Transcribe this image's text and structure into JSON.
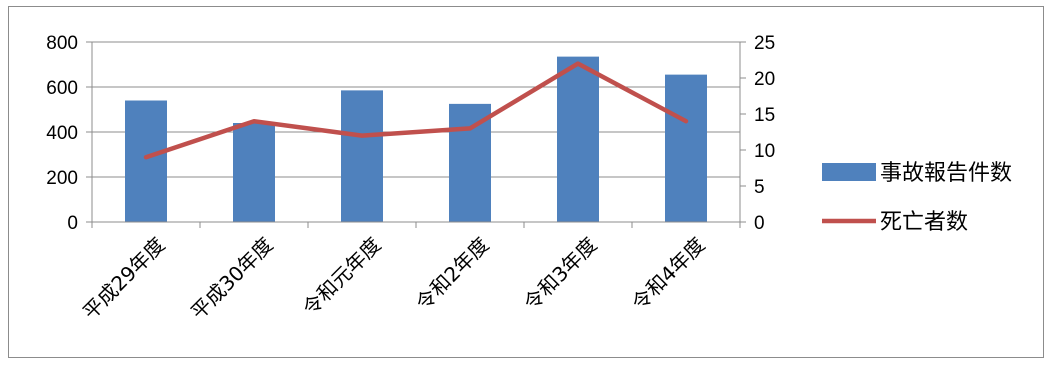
{
  "chart_data": {
    "type": "bar+line",
    "categories": [
      "平成29年度",
      "平成30年度",
      "令和元年度",
      "令和2年度",
      "令和3年度",
      "令和4年度"
    ],
    "series": [
      {
        "name": "事故報告件数",
        "type": "bar",
        "axis": "left",
        "color": "#4f81bd",
        "values": [
          540,
          440,
          585,
          525,
          735,
          655
        ]
      },
      {
        "name": "死亡者数",
        "type": "line",
        "axis": "right",
        "color": "#c0504d",
        "values": [
          9,
          14,
          12,
          13,
          22,
          14
        ]
      }
    ],
    "y_left": {
      "min": 0,
      "max": 800,
      "ticks": [
        "0",
        "200",
        "400",
        "600",
        "800"
      ]
    },
    "y_right": {
      "min": 0,
      "max": 25,
      "ticks": [
        "0",
        "5",
        "10",
        "15",
        "20",
        "25"
      ]
    },
    "grid": true,
    "legend": "right"
  }
}
